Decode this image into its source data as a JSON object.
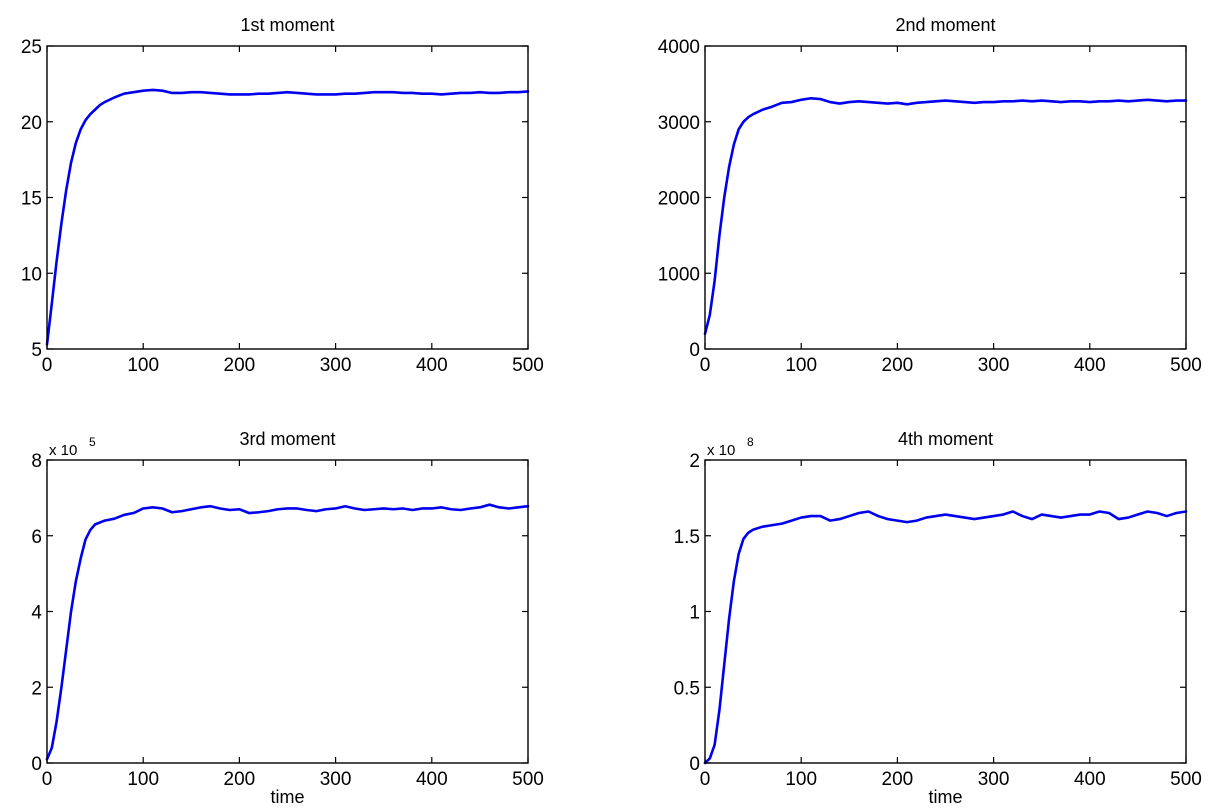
{
  "chart_data": [
    {
      "type": "line",
      "title": "1st moment",
      "xlabel": "",
      "ylabel": "",
      "xlim": [
        0,
        500
      ],
      "ylim": [
        5,
        25
      ],
      "xticks": [
        0,
        100,
        200,
        300,
        400,
        500
      ],
      "yticks": [
        5,
        10,
        15,
        20,
        25
      ],
      "y_exponent": "",
      "grid": false,
      "color": "#0000ee",
      "series": [
        {
          "x": [
            0,
            5,
            10,
            15,
            20,
            25,
            30,
            35,
            40,
            45,
            50,
            55,
            60,
            70,
            80,
            90,
            100,
            110,
            120,
            130,
            140,
            150,
            160,
            170,
            180,
            190,
            200,
            210,
            220,
            230,
            240,
            250,
            260,
            270,
            280,
            290,
            300,
            310,
            320,
            330,
            340,
            350,
            360,
            370,
            380,
            390,
            400,
            410,
            420,
            430,
            440,
            450,
            460,
            470,
            480,
            490,
            500
          ],
          "y": [
            5.3,
            8.0,
            10.8,
            13.3,
            15.5,
            17.3,
            18.6,
            19.5,
            20.1,
            20.5,
            20.8,
            21.1,
            21.3,
            21.6,
            21.85,
            21.95,
            22.05,
            22.1,
            22.05,
            21.9,
            21.9,
            21.95,
            21.95,
            21.9,
            21.85,
            21.8,
            21.8,
            21.8,
            21.85,
            21.85,
            21.9,
            21.95,
            21.9,
            21.85,
            21.8,
            21.8,
            21.8,
            21.85,
            21.85,
            21.9,
            21.95,
            21.95,
            21.95,
            21.9,
            21.9,
            21.85,
            21.85,
            21.8,
            21.85,
            21.9,
            21.9,
            21.95,
            21.9,
            21.9,
            21.95,
            21.95,
            22.0
          ]
        }
      ]
    },
    {
      "type": "line",
      "title": "2nd moment",
      "xlabel": "",
      "ylabel": "",
      "xlim": [
        0,
        500
      ],
      "ylim": [
        0,
        4000
      ],
      "xticks": [
        0,
        100,
        200,
        300,
        400,
        500
      ],
      "yticks": [
        0,
        1000,
        2000,
        3000,
        4000
      ],
      "y_exponent": "",
      "grid": false,
      "color": "#0000ee",
      "series": [
        {
          "x": [
            0,
            5,
            10,
            15,
            20,
            25,
            30,
            35,
            40,
            45,
            50,
            55,
            60,
            70,
            80,
            90,
            100,
            110,
            120,
            130,
            140,
            150,
            160,
            170,
            180,
            190,
            200,
            210,
            220,
            230,
            240,
            250,
            260,
            270,
            280,
            290,
            300,
            310,
            320,
            330,
            340,
            350,
            360,
            370,
            380,
            390,
            400,
            410,
            420,
            430,
            440,
            450,
            460,
            470,
            480,
            490,
            500
          ],
          "y": [
            200,
            450,
            900,
            1500,
            2000,
            2400,
            2700,
            2900,
            3000,
            3060,
            3100,
            3130,
            3160,
            3200,
            3250,
            3260,
            3290,
            3310,
            3300,
            3260,
            3240,
            3260,
            3270,
            3260,
            3250,
            3240,
            3250,
            3230,
            3250,
            3260,
            3270,
            3280,
            3270,
            3260,
            3250,
            3260,
            3260,
            3270,
            3270,
            3280,
            3270,
            3280,
            3270,
            3260,
            3270,
            3270,
            3260,
            3270,
            3270,
            3280,
            3270,
            3280,
            3290,
            3280,
            3270,
            3280,
            3280
          ]
        }
      ]
    },
    {
      "type": "line",
      "title": "3rd moment",
      "xlabel": "time",
      "ylabel": "",
      "xlim": [
        0,
        500
      ],
      "ylim": [
        0,
        8
      ],
      "xticks": [
        0,
        100,
        200,
        300,
        400,
        500
      ],
      "yticks": [
        0,
        2,
        4,
        6,
        8
      ],
      "y_exponent": "x 10",
      "y_exponent_power": "5",
      "grid": false,
      "color": "#0000ee",
      "series": [
        {
          "x": [
            0,
            5,
            10,
            15,
            20,
            25,
            30,
            35,
            40,
            45,
            50,
            55,
            60,
            70,
            80,
            90,
            100,
            110,
            120,
            130,
            140,
            150,
            160,
            170,
            180,
            190,
            200,
            210,
            220,
            230,
            240,
            250,
            260,
            270,
            280,
            290,
            300,
            310,
            320,
            330,
            340,
            350,
            360,
            370,
            380,
            390,
            400,
            410,
            420,
            430,
            440,
            450,
            460,
            470,
            480,
            490,
            500
          ],
          "y": [
            0.1,
            0.4,
            1.1,
            2.0,
            3.0,
            4.0,
            4.8,
            5.4,
            5.9,
            6.15,
            6.3,
            6.35,
            6.4,
            6.45,
            6.55,
            6.6,
            6.72,
            6.75,
            6.72,
            6.62,
            6.65,
            6.7,
            6.75,
            6.78,
            6.72,
            6.68,
            6.7,
            6.6,
            6.62,
            6.65,
            6.7,
            6.72,
            6.72,
            6.68,
            6.65,
            6.7,
            6.72,
            6.78,
            6.72,
            6.68,
            6.7,
            6.72,
            6.7,
            6.72,
            6.68,
            6.72,
            6.72,
            6.75,
            6.7,
            6.68,
            6.72,
            6.75,
            6.82,
            6.75,
            6.72,
            6.75,
            6.78
          ]
        }
      ]
    },
    {
      "type": "line",
      "title": "4th moment",
      "xlabel": "time",
      "ylabel": "",
      "xlim": [
        0,
        500
      ],
      "ylim": [
        0,
        2
      ],
      "xticks": [
        0,
        100,
        200,
        300,
        400,
        500
      ],
      "yticks": [
        0,
        0.5,
        1,
        1.5,
        2
      ],
      "y_exponent": "x 10",
      "y_exponent_power": "8",
      "grid": false,
      "color": "#0000ee",
      "series": [
        {
          "x": [
            0,
            5,
            10,
            15,
            20,
            25,
            30,
            35,
            40,
            45,
            50,
            55,
            60,
            70,
            80,
            90,
            100,
            110,
            120,
            130,
            140,
            150,
            160,
            170,
            180,
            190,
            200,
            210,
            220,
            230,
            240,
            250,
            260,
            270,
            280,
            290,
            300,
            310,
            320,
            330,
            340,
            350,
            360,
            370,
            380,
            390,
            400,
            410,
            420,
            430,
            440,
            450,
            460,
            470,
            480,
            490,
            500
          ],
          "y": [
            0.0,
            0.03,
            0.12,
            0.35,
            0.65,
            0.95,
            1.2,
            1.38,
            1.48,
            1.52,
            1.54,
            1.55,
            1.56,
            1.57,
            1.58,
            1.6,
            1.62,
            1.63,
            1.63,
            1.6,
            1.61,
            1.63,
            1.65,
            1.66,
            1.63,
            1.61,
            1.6,
            1.59,
            1.6,
            1.62,
            1.63,
            1.64,
            1.63,
            1.62,
            1.61,
            1.62,
            1.63,
            1.64,
            1.66,
            1.63,
            1.61,
            1.64,
            1.63,
            1.62,
            1.63,
            1.64,
            1.64,
            1.66,
            1.65,
            1.61,
            1.62,
            1.64,
            1.66,
            1.65,
            1.63,
            1.65,
            1.66
          ]
        }
      ]
    }
  ]
}
